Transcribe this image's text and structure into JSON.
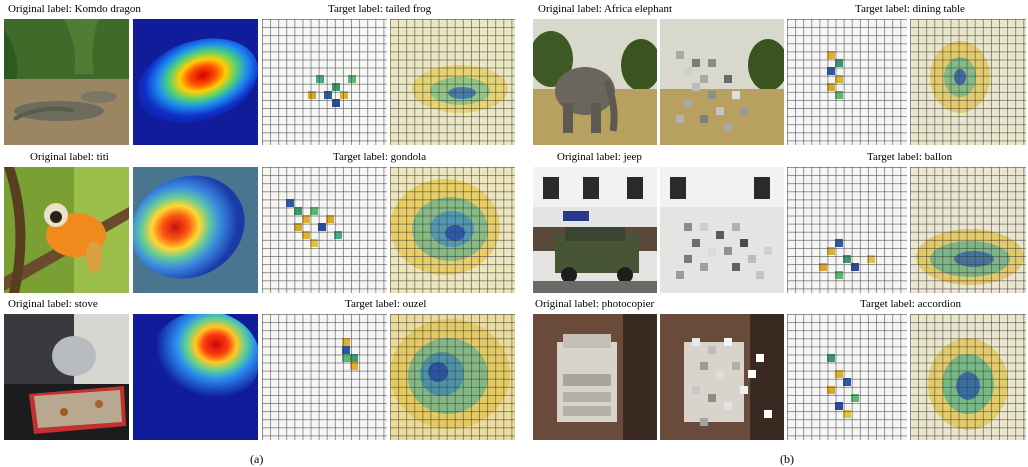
{
  "panel_a": {
    "rows": [
      {
        "original": "Original label: Komdo dragon",
        "target": "Target label: tailed frog"
      },
      {
        "original": "Original label: titi",
        "target": "Target label: gondola"
      },
      {
        "original": "Original label: stove",
        "target": "Target label: ouzel"
      }
    ],
    "caption": "(a)"
  },
  "panel_b": {
    "rows": [
      {
        "original": "Original label: Africa elephant",
        "target": "Target label: dining table"
      },
      {
        "original": "Original label: jeep",
        "target": "Target label: ballon"
      },
      {
        "original": "Original label: photocopier",
        "target": "Target label: accordion"
      }
    ],
    "caption": "(b)"
  }
}
